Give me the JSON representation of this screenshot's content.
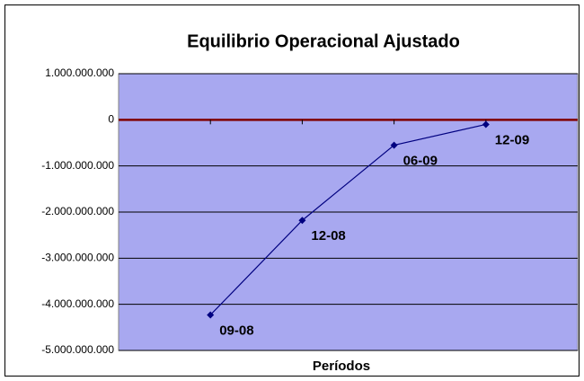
{
  "chart_data": {
    "type": "line",
    "title": "Equilibrio Operacional Ajustado",
    "x_label": "Períodos",
    "categories": [
      "09-08",
      "12-08",
      "06-09",
      "12-09"
    ],
    "series": [
      {
        "name": "Equilibrio Operacional Ajustado",
        "color": "#000080",
        "values": [
          -4230000000,
          -2180000000,
          -550000000,
          -100000000
        ]
      }
    ],
    "ylim": [
      -5000000000,
      1000000000
    ],
    "yticks": [
      {
        "value": -5000000000,
        "label": "-5.000.000.000"
      },
      {
        "value": -4000000000,
        "label": "-4.000.000.000"
      },
      {
        "value": -3000000000,
        "label": "-3.000.000.000"
      },
      {
        "value": -2000000000,
        "label": "-2.000.000.000"
      },
      {
        "value": -1000000000,
        "label": "-1.000.000.000"
      },
      0,
      {
        "value": 1000000000,
        "label": "1.000.000.000"
      }
    ],
    "grid": true,
    "plot_background": "#a8a8f0",
    "zero_line_color": "#800000"
  }
}
